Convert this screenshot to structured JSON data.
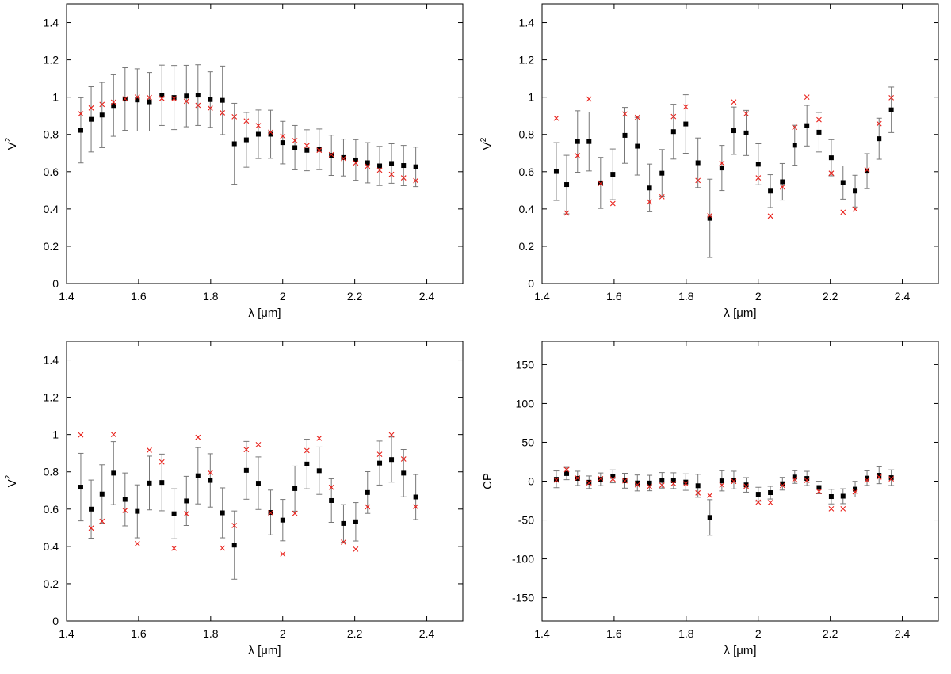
{
  "figure": {
    "marker_colors": {
      "observed": "#000000",
      "model": "#e8201a",
      "errorbar": "#777777"
    }
  },
  "chart_data": [
    {
      "type": "scatter",
      "title": "",
      "xlabel": "λ [μm]",
      "ylabel": "V",
      "ylabel_sup": "2",
      "xlim": [
        1.4,
        2.5
      ],
      "ylim": [
        0,
        1.5
      ],
      "xticks": [
        1.4,
        1.6,
        1.8,
        2,
        2.2,
        2.4
      ],
      "yticks": [
        0,
        0.2,
        0.4,
        0.6,
        0.8,
        1,
        1.2,
        1.4
      ],
      "ytick_labels": [
        "0",
        "0.2",
        "0.4",
        "0.6",
        "0.8",
        "1",
        "1.2",
        "1.4"
      ],
      "grid": false,
      "x": [
        1.4395,
        1.4683,
        1.4985,
        1.5304,
        1.5624,
        1.5965,
        1.6299,
        1.6646,
        1.6983,
        1.7328,
        1.7648,
        1.7989,
        1.8327,
        1.8658,
        1.8991,
        1.9323,
        1.9666,
        2.0002,
        2.0338,
        2.0673,
        2.1013,
        2.1352,
        2.1688,
        2.2028,
        2.2355,
        2.2691,
        2.3021,
        2.3355,
        2.3694
      ],
      "observed": {
        "y": [
          0.822,
          0.881,
          0.904,
          0.955,
          0.99,
          0.985,
          0.975,
          1.01,
          0.998,
          1.006,
          1.011,
          0.987,
          0.983,
          0.75,
          0.771,
          0.801,
          0.801,
          0.756,
          0.729,
          0.715,
          0.72,
          0.688,
          0.676,
          0.663,
          0.648,
          0.631,
          0.644,
          0.633,
          0.626
        ],
        "yerr": [
          0.175,
          0.175,
          0.175,
          0.165,
          0.168,
          0.167,
          0.157,
          0.162,
          0.172,
          0.165,
          0.163,
          0.149,
          0.184,
          0.217,
          0.147,
          0.13,
          0.129,
          0.114,
          0.119,
          0.11,
          0.109,
          0.108,
          0.099,
          0.109,
          0.108,
          0.105,
          0.106,
          0.108,
          0.106
        ]
      },
      "model": {
        "y": [
          0.911,
          0.942,
          0.961,
          0.973,
          0.991,
          1.0,
          0.998,
          0.993,
          0.992,
          0.978,
          0.956,
          0.941,
          0.916,
          0.895,
          0.872,
          0.847,
          0.812,
          0.791,
          0.767,
          0.74,
          0.715,
          0.692,
          0.671,
          0.647,
          0.629,
          0.608,
          0.586,
          0.567,
          0.552
        ]
      }
    },
    {
      "type": "scatter",
      "title": "",
      "xlabel": "λ [μm]",
      "ylabel": "V",
      "ylabel_sup": "2",
      "xlim": [
        1.4,
        2.5
      ],
      "ylim": [
        0,
        1.5
      ],
      "xticks": [
        1.4,
        1.6,
        1.8,
        2,
        2.2,
        2.4
      ],
      "yticks": [
        0,
        0.2,
        0.4,
        0.6,
        0.8,
        1,
        1.2,
        1.4
      ],
      "ytick_labels": [
        "0",
        "0.2",
        "0.4",
        "0.6",
        "0.8",
        "1",
        "1.2",
        "1.4"
      ],
      "grid": false,
      "x": [
        1.4395,
        1.4683,
        1.4985,
        1.5304,
        1.5624,
        1.5965,
        1.6299,
        1.6646,
        1.6983,
        1.7328,
        1.7648,
        1.7989,
        1.8327,
        1.8658,
        1.8991,
        1.9323,
        1.9666,
        2.0002,
        2.0338,
        2.0673,
        2.1013,
        2.1352,
        2.1688,
        2.2028,
        2.2355,
        2.2691,
        2.3021,
        2.3355,
        2.3694
      ],
      "observed": {
        "y": [
          0.601,
          0.531,
          0.762,
          0.762,
          0.54,
          0.586,
          0.795,
          0.737,
          0.513,
          0.592,
          0.815,
          0.856,
          0.648,
          0.35,
          0.62,
          0.82,
          0.808,
          0.64,
          0.496,
          0.546,
          0.742,
          0.847,
          0.812,
          0.675,
          0.542,
          0.496,
          0.603,
          0.777,
          0.932
        ],
        "yerr": [
          0.155,
          0.157,
          0.165,
          0.158,
          0.137,
          0.136,
          0.15,
          0.155,
          0.128,
          0.127,
          0.147,
          0.157,
          0.133,
          0.21,
          0.121,
          0.127,
          0.121,
          0.11,
          0.088,
          0.098,
          0.107,
          0.109,
          0.106,
          0.097,
          0.089,
          0.085,
          0.094,
          0.11,
          0.122
        ]
      },
      "model": {
        "y": [
          0.887,
          0.378,
          0.686,
          0.99,
          0.537,
          0.429,
          0.91,
          0.892,
          0.438,
          0.466,
          0.896,
          0.948,
          0.553,
          0.365,
          0.646,
          0.974,
          0.911,
          0.567,
          0.362,
          0.518,
          0.838,
          1.0,
          0.879,
          0.592,
          0.383,
          0.399,
          0.61,
          0.858,
          0.997
        ]
      }
    },
    {
      "type": "scatter",
      "title": "",
      "xlabel": "λ [μm]",
      "ylabel": "V",
      "ylabel_sup": "2",
      "xlim": [
        1.4,
        2.5
      ],
      "ylim": [
        0,
        1.5
      ],
      "xticks": [
        1.4,
        1.6,
        1.8,
        2,
        2.2,
        2.4
      ],
      "yticks": [
        0,
        0.2,
        0.4,
        0.6,
        0.8,
        1,
        1.2,
        1.4
      ],
      "ytick_labels": [
        "0",
        "0.2",
        "0.4",
        "0.6",
        "0.8",
        "1",
        "1.2",
        "1.4"
      ],
      "grid": false,
      "x": [
        1.4395,
        1.4683,
        1.4985,
        1.5304,
        1.5624,
        1.5965,
        1.6299,
        1.6646,
        1.6983,
        1.7328,
        1.7648,
        1.7989,
        1.8327,
        1.8658,
        1.8991,
        1.9323,
        1.9666,
        2.0002,
        2.0338,
        2.0673,
        2.1013,
        2.1352,
        2.1688,
        2.2028,
        2.2355,
        2.2691,
        2.3021,
        2.3355,
        2.3694
      ],
      "observed": {
        "y": [
          0.718,
          0.6,
          0.681,
          0.793,
          0.652,
          0.588,
          0.74,
          0.743,
          0.575,
          0.644,
          0.779,
          0.754,
          0.58,
          0.407,
          0.808,
          0.739,
          0.582,
          0.541,
          0.71,
          0.842,
          0.806,
          0.646,
          0.523,
          0.532,
          0.689,
          0.847,
          0.866,
          0.793,
          0.665
        ],
        "yerr": [
          0.181,
          0.156,
          0.157,
          0.169,
          0.142,
          0.142,
          0.144,
          0.152,
          0.134,
          0.132,
          0.151,
          0.143,
          0.134,
          0.183,
          0.155,
          0.141,
          0.12,
          0.111,
          0.121,
          0.133,
          0.127,
          0.117,
          0.101,
          0.103,
          0.112,
          0.118,
          0.121,
          0.127,
          0.121
        ]
      },
      "model": {
        "y": [
          0.998,
          0.498,
          0.535,
          1.0,
          0.593,
          0.415,
          0.916,
          0.853,
          0.39,
          0.575,
          0.985,
          0.795,
          0.391,
          0.512,
          0.919,
          0.946,
          0.58,
          0.359,
          0.577,
          0.914,
          0.98,
          0.717,
          0.423,
          0.385,
          0.612,
          0.894,
          0.998,
          0.869,
          0.613
        ]
      }
    },
    {
      "type": "scatter",
      "title": "",
      "xlabel": "λ [μm]",
      "ylabel": "CP",
      "ylabel_sup": "",
      "xlim": [
        1.4,
        2.5
      ],
      "ylim": [
        -180,
        180
      ],
      "xticks": [
        1.4,
        1.6,
        1.8,
        2,
        2.2,
        2.4
      ],
      "yticks": [
        -150,
        -100,
        -50,
        0,
        50,
        100,
        150
      ],
      "ytick_labels": [
        "-150",
        "-100",
        "-50",
        "0",
        "50",
        "100",
        "150"
      ],
      "grid": false,
      "x": [
        1.4395,
        1.4683,
        1.4985,
        1.5304,
        1.5624,
        1.5965,
        1.6299,
        1.6646,
        1.6983,
        1.7328,
        1.7648,
        1.7989,
        1.8327,
        1.8658,
        1.8991,
        1.9323,
        1.9666,
        2.0002,
        2.0338,
        2.0673,
        2.1013,
        2.1352,
        2.1688,
        2.2028,
        2.2355,
        2.2691,
        2.3021,
        2.3355,
        2.3694
      ],
      "observed": {
        "y": [
          2.4,
          9.8,
          3.6,
          -1.4,
          2.4,
          6.2,
          0.6,
          -2.3,
          -2.4,
          1.1,
          0.6,
          -1.2,
          -5.9,
          -46.7,
          0.4,
          1.4,
          -4.8,
          -16.9,
          -14.8,
          -3.3,
          5.3,
          3.5,
          -8.2,
          -19.9,
          -19.4,
          -10.3,
          3.9,
          7.6,
          4.5
        ],
        "yerr": [
          10.8,
          7.9,
          9.2,
          8.1,
          8.2,
          8.3,
          9.6,
          10.3,
          10.0,
          10.0,
          10.2,
          10.6,
          14.8,
          22.9,
          13.0,
          11.4,
          9.4,
          9.0,
          8.2,
          8.2,
          8.1,
          9.2,
          8.1,
          9.4,
          9.6,
          10.1,
          9.4,
          10.8,
          10.1
        ]
      },
      "model": {
        "y": [
          1.4,
          14.8,
          4.1,
          -2.2,
          3.3,
          2.7,
          0.4,
          -4.7,
          -6.9,
          -5.2,
          -3.1,
          -3.2,
          -15.1,
          -18.4,
          -5.1,
          -0.2,
          -6.6,
          -27.0,
          -27.6,
          -5.6,
          2.2,
          1.0,
          -13.4,
          -35.6,
          -35.6,
          -13.7,
          1.1,
          5.3,
          3.0
        ]
      }
    }
  ]
}
